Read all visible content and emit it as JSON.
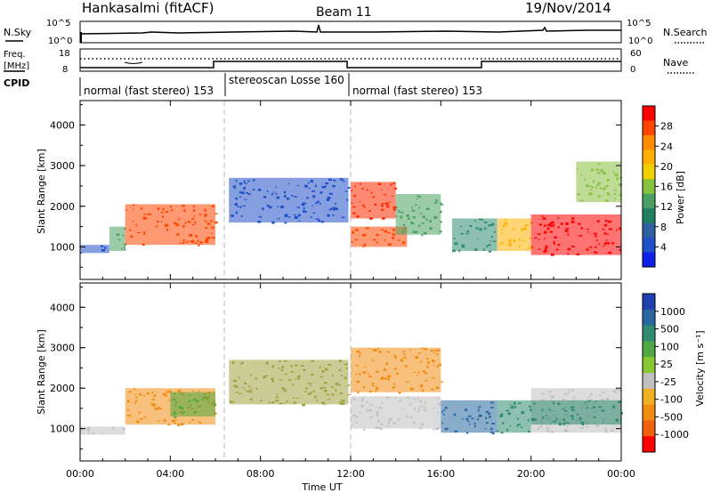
{
  "header": {
    "title": "Hankasalmi (fitACF)",
    "beam": "Beam 11",
    "date": "19/Nov/2014"
  },
  "noise_panel": {
    "left_label": "N.Sky",
    "right_label": "N.Search",
    "left_ticks": [
      "10^5",
      "10^0"
    ],
    "right_ticks": [
      "10^5",
      "10^0"
    ]
  },
  "freq_panel": {
    "left_label_1": "Freq.",
    "left_label_2": "[MHz]",
    "right_label": "Nave",
    "left_ticks": [
      "18",
      "8"
    ],
    "right_ticks": [
      "60",
      "0"
    ]
  },
  "cpid_panel": {
    "label": "CPID",
    "segments": [
      {
        "text": "normal (fast stereo) 153",
        "start_h": 0,
        "end_h": 6.4
      },
      {
        "text": "stereoscan Losse 160",
        "start_h": 6.4,
        "end_h": 12
      },
      {
        "text": "normal (fast stereo) 153",
        "start_h": 12,
        "end_h": 24
      }
    ]
  },
  "power_colorbar": {
    "title": "Power [dB]",
    "ticks": [
      "28",
      "24",
      "20",
      "16",
      "12",
      "8",
      "4"
    ],
    "colors": [
      "#ff0000",
      "#ff4500",
      "#ff8c00",
      "#ffb000",
      "#f0d000",
      "#88c040",
      "#4aa060",
      "#208060",
      "#3060a0",
      "#2050c8",
      "#1020e8"
    ]
  },
  "velocity_colorbar": {
    "title": "Velocity [m s⁻¹]",
    "ticks": [
      "1000",
      "500",
      "100",
      "25",
      "-25",
      "-100",
      "-500",
      "-1000"
    ],
    "colors": [
      "#2040b0",
      "#2868a0",
      "#308c70",
      "#50a840",
      "#88c830",
      "#c0c0c0",
      "#f0b020",
      "#f08c10",
      "#f06010",
      "#ff0000"
    ]
  },
  "chart_data": [
    {
      "type": "heatmap",
      "title": "Power",
      "xlabel": "Time UT",
      "ylabel": "Slant Range [km]",
      "xlim": [
        0,
        24
      ],
      "ylim": [
        200,
        4600
      ],
      "xticks": [
        "00:00",
        "04:00",
        "08:00",
        "12:00",
        "16:00",
        "20:00",
        "00:00"
      ],
      "yticks": [
        "1000",
        "2000",
        "3000",
        "4000"
      ],
      "regions": [
        {
          "x0": 0,
          "x1": 1.3,
          "y0": 850,
          "y1": 1050,
          "level": "weak",
          "color": "#2050c8"
        },
        {
          "x0": 1.3,
          "x1": 2.0,
          "y0": 900,
          "y1": 1500,
          "level": "moderate",
          "color": "#4aa060"
        },
        {
          "x0": 2.0,
          "x1": 6.0,
          "y0": 1050,
          "y1": 2050,
          "level": "strong",
          "color": "#ff4500"
        },
        {
          "x0": 6.6,
          "x1": 11.9,
          "y0": 1600,
          "y1": 2700,
          "level": "weak",
          "color": "#2050c8"
        },
        {
          "x0": 12.0,
          "x1": 14.0,
          "y0": 1700,
          "y1": 2600,
          "level": "strong",
          "color": "#ff2a00"
        },
        {
          "x0": 12.0,
          "x1": 14.5,
          "y0": 1000,
          "y1": 1500,
          "level": "strong",
          "color": "#ff4500"
        },
        {
          "x0": 14.0,
          "x1": 16.0,
          "y0": 1300,
          "y1": 2300,
          "level": "moderate",
          "color": "#4aa060"
        },
        {
          "x0": 16.5,
          "x1": 18.5,
          "y0": 900,
          "y1": 1700,
          "level": "moderate",
          "color": "#308c70"
        },
        {
          "x0": 18.5,
          "x1": 20.0,
          "y0": 900,
          "y1": 1700,
          "level": "moderate",
          "color": "#ffb000"
        },
        {
          "x0": 20.0,
          "x1": 24.0,
          "y0": 800,
          "y1": 1800,
          "level": "very strong",
          "color": "#ff0000"
        },
        {
          "x0": 22.0,
          "x1": 24.0,
          "y0": 2100,
          "y1": 3100,
          "level": "moderate",
          "color": "#88c040"
        }
      ]
    },
    {
      "type": "heatmap",
      "title": "Velocity",
      "xlabel": "Time UT",
      "ylabel": "Slant Range [km]",
      "xlim": [
        0,
        24
      ],
      "ylim": [
        200,
        4600
      ],
      "xticks": [
        "00:00",
        "04:00",
        "08:00",
        "12:00",
        "16:00",
        "20:00",
        "00:00"
      ],
      "yticks": [
        "1000",
        "2000",
        "3000",
        "4000"
      ],
      "regions": [
        {
          "x0": 0,
          "x1": 2.0,
          "y0": 850,
          "y1": 1050,
          "level": "ground",
          "color": "#c0c0c0"
        },
        {
          "x0": 2.0,
          "x1": 6.0,
          "y0": 1100,
          "y1": 2000,
          "level": "-100",
          "color": "#f08c10"
        },
        {
          "x0": 4.0,
          "x1": 6.0,
          "y0": 1300,
          "y1": 1900,
          "level": "100",
          "color": "#50a840"
        },
        {
          "x0": 6.6,
          "x1": 11.9,
          "y0": 1600,
          "y1": 2700,
          "level": "mixed",
          "color": "#a0a040"
        },
        {
          "x0": 12.0,
          "x1": 16.0,
          "y0": 1000,
          "y1": 1800,
          "level": "ground",
          "color": "#c0c0c0"
        },
        {
          "x0": 12.0,
          "x1": 16.0,
          "y0": 1900,
          "y1": 3000,
          "level": "-100",
          "color": "#f08c10"
        },
        {
          "x0": 16.0,
          "x1": 18.5,
          "y0": 900,
          "y1": 1700,
          "level": "500",
          "color": "#2868a0"
        },
        {
          "x0": 18.5,
          "x1": 20.0,
          "y0": 900,
          "y1": 1700,
          "level": "100",
          "color": "#308c70"
        },
        {
          "x0": 20.0,
          "x1": 24.0,
          "y0": 900,
          "y1": 2000,
          "level": "ground",
          "color": "#c0c0c0"
        },
        {
          "x0": 20.0,
          "x1": 24.0,
          "y0": 1100,
          "y1": 1700,
          "level": "100",
          "color": "#308c70"
        }
      ]
    }
  ]
}
